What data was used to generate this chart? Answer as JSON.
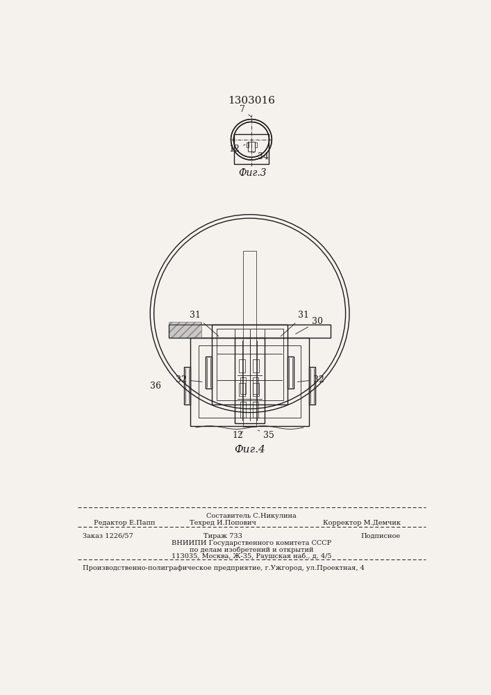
{
  "patent_number": "1303016",
  "fig3_label": "Фиг.3",
  "fig4_label": "Фиг.4",
  "bg_color": "#f5f2ee",
  "line_color": "#1a1a1a",
  "label_7": "7",
  "label_12_fig3": "12",
  "label_34": "34",
  "label_31_left": "31",
  "label_31_right": "31",
  "label_36": "36",
  "label_30": "30",
  "label_32_left": "32",
  "label_32_right": "32",
  "label_12_fig4": "12",
  "label_35": "35",
  "footer_line0_center": "Составитель С.Никулина",
  "footer_line1_left": "Редактор Е.Папп",
  "footer_line1_center": "Техред И.Попович",
  "footer_line1_right": "Корректор М.Демчик",
  "footer_line2_left": "Заказ 1226/57",
  "footer_line2_center": "Тираж 733",
  "footer_line2_right": "Подписное",
  "footer_line3": "ВНИИПИ Государственного комитета СССР",
  "footer_line4": "по делам изобретений и открытий",
  "footer_line5": "113035, Москва, Ж-35, Раушская наб., д. 4/5",
  "footer_line6": "Производственно-полиграфическое предприятие, г.Ужгород, ул.Проектная, 4"
}
